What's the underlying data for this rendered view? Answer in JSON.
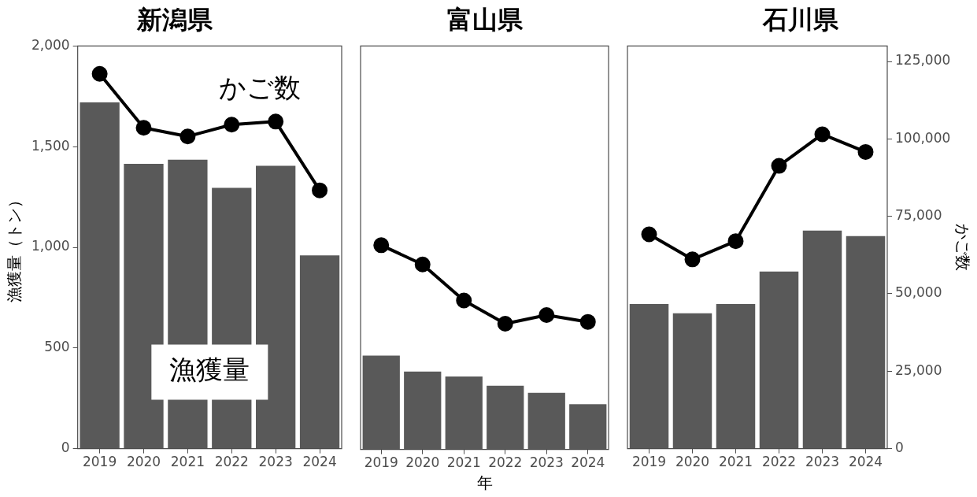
{
  "chart_data": [
    {
      "type": "bar",
      "title": "新潟県",
      "ylabel": "漁獲量（トン）",
      "categories": [
        "2019",
        "2020",
        "2021",
        "2022",
        "2023",
        "2024"
      ],
      "series": [
        {
          "name": "漁獲量",
          "color": "#595959",
          "values": [
            1720,
            1415,
            1435,
            1295,
            1405,
            960
          ]
        },
        {
          "type": "line",
          "axis": "y2",
          "name": "かご数",
          "color": "#000000",
          "values": [
            121000,
            103600,
            100800,
            104600,
            105600,
            83400
          ]
        }
      ],
      "ylim": [
        0,
        2000
      ],
      "yticks": [
        0,
        500,
        {
          "value": 1000,
          "label": "1,000"
        },
        {
          "value": 1500,
          "label": "1,500"
        },
        {
          "value": 2000,
          "label": "2,000"
        }
      ],
      "y2lim": [
        0,
        130000
      ],
      "tick_labels": "xy",
      "marker": "circle"
    },
    {
      "type": "bar",
      "title": "富山県",
      "xlabel": "年",
      "categories": [
        "2019",
        "2020",
        "2021",
        "2022",
        "2023",
        "2024"
      ],
      "series": [
        {
          "color": "#595959",
          "values": [
            465,
            386,
            362,
            316,
            281,
            224
          ]
        },
        {
          "type": "line",
          "axis": "y2",
          "color": "#000000",
          "values": [
            65800,
            59600,
            48000,
            40500,
            43300,
            41100
          ]
        }
      ],
      "ylim": [
        0,
        2000
      ],
      "y2lim": [
        0,
        130000
      ],
      "tick_labels": "x",
      "marker": "circle"
    },
    {
      "type": "bar",
      "title": "石川県",
      "y2label": "かご数",
      "categories": [
        "2019",
        "2020",
        "2021",
        "2022",
        "2023",
        "2024"
      ],
      "series": [
        {
          "color": "#595959",
          "values": [
            718,
            672,
            718,
            880,
            1083,
            1056
          ]
        },
        {
          "type": "line",
          "axis": "y2",
          "color": "#000000",
          "values": [
            69200,
            61100,
            67000,
            91300,
            101500,
            95800
          ]
        }
      ],
      "ylim": [
        0,
        2000
      ],
      "y2lim": [
        0,
        130000
      ],
      "y2ticks": [
        0,
        {
          "value": 25000,
          "label": "25,000"
        },
        {
          "value": 50000,
          "label": "50,000"
        },
        {
          "value": 75000,
          "label": "75,000"
        },
        {
          "value": 100000,
          "label": "100,000"
        },
        {
          "value": 125000,
          "label": "125,000"
        }
      ],
      "tick_labels": "xy2",
      "marker": "circle"
    }
  ]
}
